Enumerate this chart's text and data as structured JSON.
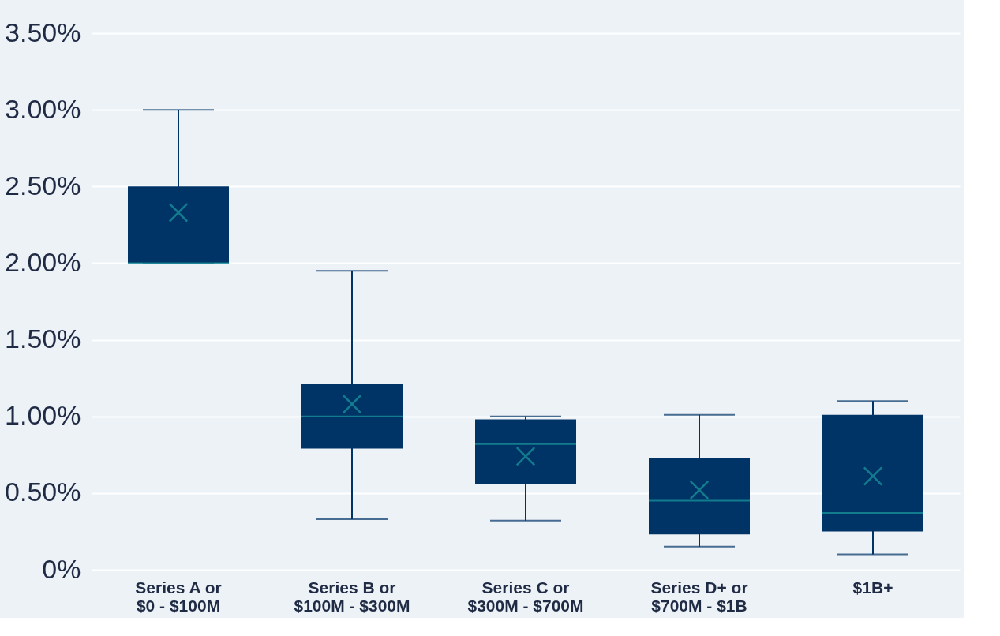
{
  "chart_data": {
    "type": "box",
    "categories": [
      "Series A or\n$0 - $100M",
      "Series B or\n$100M - $300M",
      "Series C or\n$300M - $700M",
      "Series D+ or\n$700M - $1B",
      "$1B+"
    ],
    "boxes": [
      {
        "low": 2.0,
        "q1": 2.0,
        "median": 2.0,
        "q3": 2.5,
        "high": 3.0,
        "mean": 2.33
      },
      {
        "low": 0.33,
        "q1": 0.79,
        "median": 1.0,
        "q3": 1.21,
        "high": 1.95,
        "mean": 1.08
      },
      {
        "low": 0.32,
        "q1": 0.56,
        "median": 0.82,
        "q3": 0.98,
        "high": 1.0,
        "mean": 0.74
      },
      {
        "low": 0.15,
        "q1": 0.23,
        "median": 0.45,
        "q3": 0.73,
        "high": 1.01,
        "mean": 0.52
      },
      {
        "low": 0.1,
        "q1": 0.25,
        "median": 0.37,
        "q3": 1.01,
        "high": 1.1,
        "mean": 0.61
      }
    ],
    "color": "#003366",
    "ylim": [
      0,
      3.5
    ],
    "yticks": [
      {
        "value": 0,
        "label": "0%"
      },
      {
        "value": 0.5,
        "label": "0.50%"
      },
      {
        "value": 1.0,
        "label": "1.00%"
      },
      {
        "value": 1.5,
        "label": "1.50%"
      },
      {
        "value": 2.0,
        "label": "2.00%"
      },
      {
        "value": 2.5,
        "label": "2.50%"
      },
      {
        "value": 3.0,
        "label": "3.00%"
      },
      {
        "value": 3.5,
        "label": "3.50%"
      }
    ],
    "grid": "y"
  }
}
